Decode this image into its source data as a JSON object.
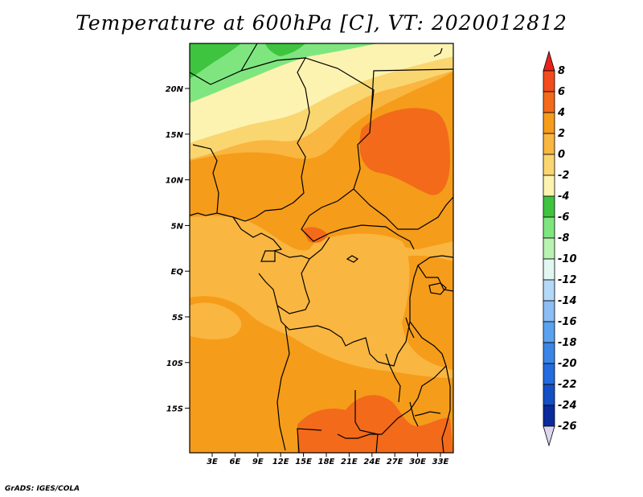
{
  "title": "Temperature at 600hPa [C], VT: 2020012812",
  "credit": "GrADS: IGES/COLA",
  "map": {
    "lat_labels": [
      "20N",
      "15N",
      "10N",
      "5N",
      "EQ",
      "5S",
      "10S",
      "15S"
    ],
    "lon_labels": [
      "3E",
      "6E",
      "9E",
      "12E",
      "15E",
      "18E",
      "21E",
      "24E",
      "27E",
      "30E",
      "33E"
    ]
  },
  "colorbar": {
    "labels": [
      "8",
      "6",
      "4",
      "2",
      "0",
      "-2",
      "-4",
      "-6",
      "-8",
      "-10",
      "-12",
      "-14",
      "-16",
      "-18",
      "-20",
      "-22",
      "-24",
      "-26"
    ],
    "colors": {
      "c_gt8": "#e8231a",
      "c_6_8": "#f24b1c",
      "c_4_6": "#f26a1a",
      "c_2_4": "#f59c1a",
      "c_0_2": "#f9b640",
      "c_m2_0": "#fad671",
      "c_m4_m2": "#fdf3b0",
      "c_m6_m4": "#3fc43f",
      "c_m8_m6": "#7fe67f",
      "c_m10_m8": "#b9f2b2",
      "c_m12_m10": "#e3f7f2",
      "c_m14_m12": "#b4d9f7",
      "c_m16_m14": "#8cbdf5",
      "c_m18_m16": "#5aa2ee",
      "c_m20_m18": "#3a85e6",
      "c_m22_m20": "#236bde",
      "c_m24_m22": "#1450c4",
      "c_m26_m24": "#0a2b9c",
      "c_lt_m26": "#04105e",
      "c_min_arrow": "#dcd6f0"
    }
  }
}
